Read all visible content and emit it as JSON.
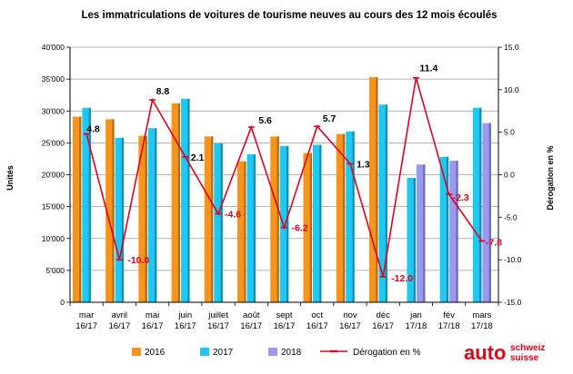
{
  "chart_data": {
    "type": "bar",
    "title": "Les immatriculations de voitures de tourisme neuves au cours des 12 mois écoulés",
    "ylabel": "Unités",
    "y2label": "Dérogation en %",
    "ylim": [
      0,
      40000
    ],
    "y2lim": [
      -15,
      15
    ],
    "yticks": [
      "0",
      "5'000",
      "10'000",
      "15'000",
      "20'000",
      "25'000",
      "30'000",
      "35'000",
      "40'000"
    ],
    "y2ticks": [
      "-15.0",
      "-10.0",
      "-5.0",
      "0.0",
      "5.0",
      "10.0",
      "15.0"
    ],
    "grid": true,
    "legend_position": "bottom",
    "categories": [
      [
        "mar",
        "16/17"
      ],
      [
        "avril",
        "16/17"
      ],
      [
        "mai",
        "16/17"
      ],
      [
        "juin",
        "16/17"
      ],
      [
        "juillet",
        "16/17"
      ],
      [
        "août",
        "16/17"
      ],
      [
        "sept",
        "16/17"
      ],
      [
        "oct",
        "16/17"
      ],
      [
        "nov",
        "16/17"
      ],
      [
        "déc",
        "16/17"
      ],
      [
        "jan",
        "17/18"
      ],
      [
        "fév",
        "17/18"
      ],
      [
        "mars",
        "17/18"
      ]
    ],
    "series": [
      {
        "name": "2016",
        "color": "#f7941d",
        "values": [
          29100,
          28700,
          26100,
          31200,
          26000,
          22100,
          26000,
          23400,
          26400,
          35300,
          null,
          null,
          null
        ]
      },
      {
        "name": "2017",
        "color": "#1ec8f0",
        "values": [
          30500,
          25800,
          27300,
          31900,
          24900,
          23200,
          24500,
          24700,
          26800,
          31000,
          19500,
          22800,
          30500
        ]
      },
      {
        "name": "2018",
        "color": "#9999ee",
        "values": [
          null,
          null,
          null,
          null,
          null,
          null,
          null,
          null,
          null,
          null,
          21600,
          22200,
          28100
        ]
      }
    ],
    "line_series": {
      "name": "Dérogation en %",
      "color": "#e3001b",
      "values": [
        4.8,
        -10.0,
        8.8,
        2.1,
        -4.6,
        5.6,
        -6.2,
        5.7,
        1.3,
        -12.0,
        11.4,
        -2.3,
        -7.8
      ],
      "labels": [
        "4.8",
        "-10.0",
        "8.8",
        "2.1",
        "-4.6",
        "5.6",
        "-6.2",
        "5.7",
        "1.3",
        "-12.0",
        "11.4",
        "-2.3",
        "-7.8"
      ],
      "label_colors": [
        "#000000",
        "#e3001b",
        "#000000",
        "#000000",
        "#e3001b",
        "#000000",
        "#e3001b",
        "#000000",
        "#000000",
        "#e3001b",
        "#000000",
        "#e3001b",
        "#e3001b"
      ]
    }
  },
  "logo": {
    "main": "auto",
    "line1": "schweiz",
    "line2": "suisse"
  }
}
